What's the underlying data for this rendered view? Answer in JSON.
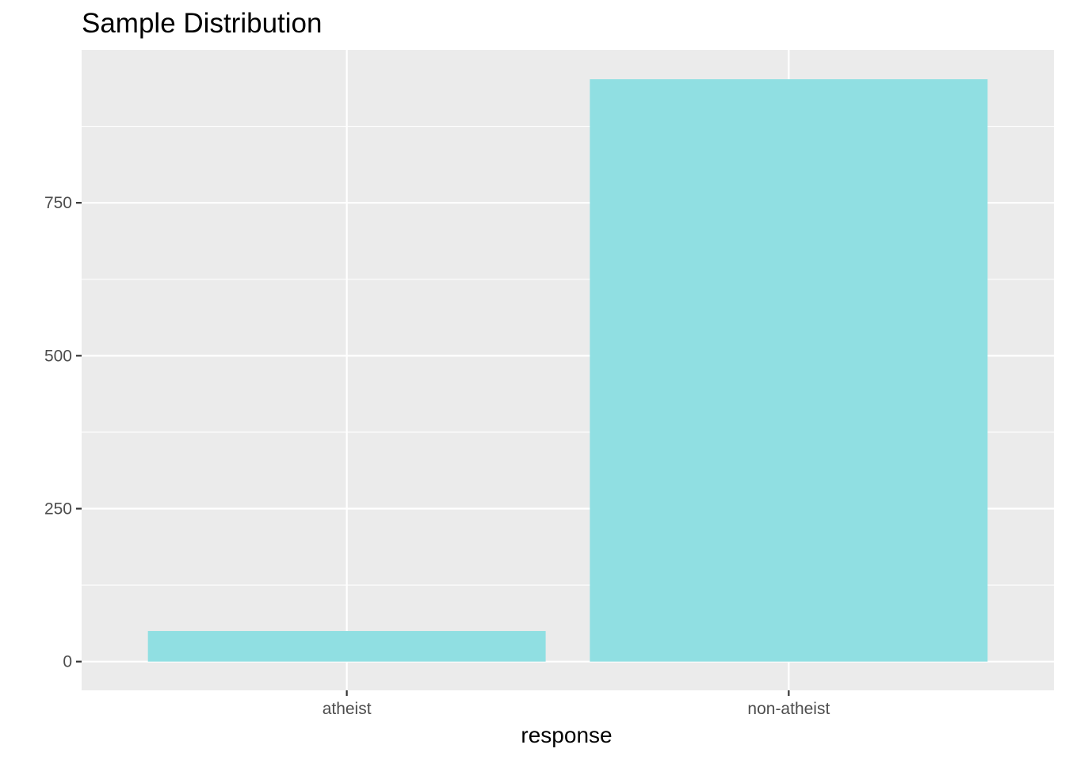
{
  "chart_data": {
    "type": "bar",
    "title": "Sample Distribution",
    "xlabel": "response",
    "ylabel": "",
    "categories": [
      "atheist",
      "non-atheist"
    ],
    "values": [
      50,
      952
    ],
    "ylim": [
      -47,
      1000
    ],
    "yticks": [
      0,
      250,
      500,
      750
    ],
    "grid": true,
    "legend": "none",
    "colors": {
      "bar": "#90dfe2",
      "panel": "#ebebeb",
      "grid": "#ffffff",
      "tick": "#333333"
    }
  }
}
